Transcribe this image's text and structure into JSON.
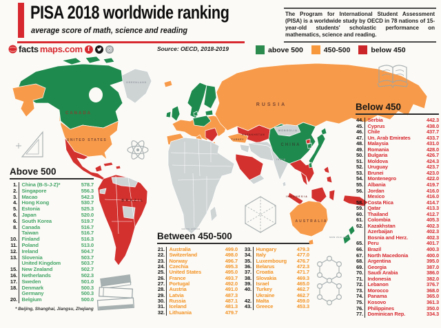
{
  "header": {
    "title": "PISA 2018 worldwide ranking",
    "subtitle": "average score of math, science and reading",
    "logo": {
      "black": "facts",
      "red": "maps.com",
      "fb": "f"
    },
    "source": "Source: OECD, 2018-2019",
    "about": "The Program for International Student Assessment (PISA) is a worldwide study by OECD in 78 nations of 15-year-old students' scholastic performance on mathematics, science and reading."
  },
  "legend": {
    "items": [
      {
        "label": "above 500",
        "color": "#2b8a4e"
      },
      {
        "label": "450-500",
        "color": "#f8983d"
      },
      {
        "label": "below 450",
        "color": "#cc2529"
      }
    ]
  },
  "colors": {
    "map_green": "#1f8a4d",
    "map_orange": "#f79b4a",
    "map_red": "#d2312e",
    "map_gray": "#ced3d4",
    "accent_red": "#d7282f",
    "list_green": "#43a566",
    "list_orange": "#f39325",
    "list_red": "#d7282f"
  },
  "panels": {
    "above": {
      "title": "Above 500",
      "footnote": "* Beijing, Shanghai, Jiangsu, Zhejiang",
      "rows": [
        [
          "1",
          "China (B-S-J-Z)*",
          "578.7"
        ],
        [
          "2",
          "Singapore",
          "556.3"
        ],
        [
          "3",
          "Macao",
          "542.3"
        ],
        [
          "4",
          "Hong Kong",
          "530.7"
        ],
        [
          "5",
          "Estonia",
          "525.3"
        ],
        [
          "6",
          "Japan",
          "520.0"
        ],
        [
          "6",
          "South Korea",
          "519.7"
        ],
        [
          "8",
          "Canada",
          "516.7"
        ],
        [
          "",
          "Taiwan",
          "516.7"
        ],
        [
          "10",
          "Finland",
          "516.3"
        ],
        [
          "11",
          "Poland",
          "513.0"
        ],
        [
          "12",
          "Ireland",
          "504.7"
        ],
        [
          "13",
          "Slovenia",
          "503.7"
        ],
        [
          "",
          "United Kingdom",
          "503.7"
        ],
        [
          "15",
          "New Zealand",
          "502.7"
        ],
        [
          "16",
          "Netherlands",
          "502.3"
        ],
        [
          "17",
          "Sweden",
          "501.0"
        ],
        [
          "18",
          "Denmark",
          "500.3"
        ],
        [
          "",
          "Germany",
          "500.3"
        ],
        [
          "20",
          "Belgium",
          "500.0"
        ]
      ]
    },
    "mid": {
      "title": "Between 450-500",
      "col1": [
        [
          "21",
          "Australia",
          "499.0"
        ],
        [
          "22",
          "Switzerland",
          "498.0"
        ],
        [
          "23",
          "Norway",
          "496.7"
        ],
        [
          "24",
          "Czechia",
          "495.3"
        ],
        [
          "25",
          "United States",
          "495.0"
        ],
        [
          "26",
          "France",
          "493.7"
        ],
        [
          "27",
          "Portugal",
          "492.0"
        ],
        [
          "28",
          "Austria",
          "491.0"
        ],
        [
          "29",
          "Latvia",
          "487.3"
        ],
        [
          "30",
          "Russia",
          "487.1"
        ],
        [
          "31",
          "Iceland",
          "481.3"
        ],
        [
          "32",
          "Lithuania",
          "479.7"
        ]
      ],
      "col2": [
        [
          "33",
          "Hungary",
          "479.3"
        ],
        [
          "34",
          "Italy",
          "477.0"
        ],
        [
          "35",
          "Luxembourg",
          "476.7"
        ],
        [
          "36",
          "Belarus",
          "472.3"
        ],
        [
          "37",
          "Croatia",
          "471.7"
        ],
        [
          "38",
          "Slovakia",
          "469.3"
        ],
        [
          "39",
          "Israel",
          "465.0"
        ],
        [
          "40",
          "Turkey",
          "462.7"
        ],
        [
          "",
          "Ukraine",
          "462.7"
        ],
        [
          "42",
          "Malta",
          "459.0"
        ],
        [
          "43",
          "Greece",
          "453.3"
        ]
      ]
    },
    "below": {
      "title": "Below 450",
      "rows": [
        [
          "44",
          "Serbia",
          "442.3"
        ],
        [
          "45",
          "Cyprus",
          "438.0"
        ],
        [
          "46",
          "Chile",
          "437.7"
        ],
        [
          "47",
          "Un. Arab Emirates",
          "433.7"
        ],
        [
          "48",
          "Malaysia",
          "431.0"
        ],
        [
          "49",
          "Romania",
          "428.0"
        ],
        [
          "50",
          "Bulgaria",
          "426.7"
        ],
        [
          "51",
          "Moldova",
          "424.3"
        ],
        [
          "52",
          "Uruguay",
          "423.7"
        ],
        [
          "53",
          "Brunei",
          "423.0"
        ],
        [
          "54",
          "Montenegro",
          "422.0"
        ],
        [
          "55",
          "Albania",
          "419.7"
        ],
        [
          "56",
          "Jordan",
          "416.0"
        ],
        [
          "",
          "Mexico",
          "416.0"
        ],
        [
          "58",
          "Costa Rica",
          "414.7"
        ],
        [
          "59",
          "Qatar",
          "413.3"
        ],
        [
          "60",
          "Thailand",
          "412.7"
        ],
        [
          "61",
          "Colombia",
          "405.3"
        ],
        [
          "62",
          "Kazakhstan",
          "402.3"
        ],
        [
          "",
          "Azerbaijan",
          "402.3"
        ],
        [
          "",
          "Bosnia and Herz.",
          "402.3"
        ],
        [
          "65",
          "Peru",
          "401.7"
        ],
        [
          "66",
          "Brazil",
          "400.3"
        ],
        [
          "67",
          "North Macedonia",
          "400.0"
        ],
        [
          "68",
          "Argentina",
          "395.0"
        ],
        [
          "69",
          "Georgia",
          "387.0"
        ],
        [
          "70",
          "Saudi Arabia",
          "386.0"
        ],
        [
          "71",
          "Indonesia",
          "382.0"
        ],
        [
          "72",
          "Lebanon",
          "376.7"
        ],
        [
          "73",
          "Morocco",
          "368.0"
        ],
        [
          "74",
          "Panama",
          "365.0"
        ],
        [
          "75",
          "Kosovo",
          "361.3"
        ],
        [
          "76",
          "Philippines",
          "350.0"
        ],
        [
          "77",
          "Dominican Rep.",
          "334.3"
        ]
      ]
    }
  },
  "map": {
    "labels": [
      "GREENLAND",
      "CANADA",
      "UNITED STATES",
      "RUSSIA",
      "KAZAKHSTAN",
      "MONGOLIA",
      "CHINA",
      "TURKEY",
      "INDIA",
      "BRAZIL",
      "SOUTH AFRICA",
      "INDONESIA",
      "AUSTRALIA",
      "NEW ZEALAND"
    ]
  }
}
